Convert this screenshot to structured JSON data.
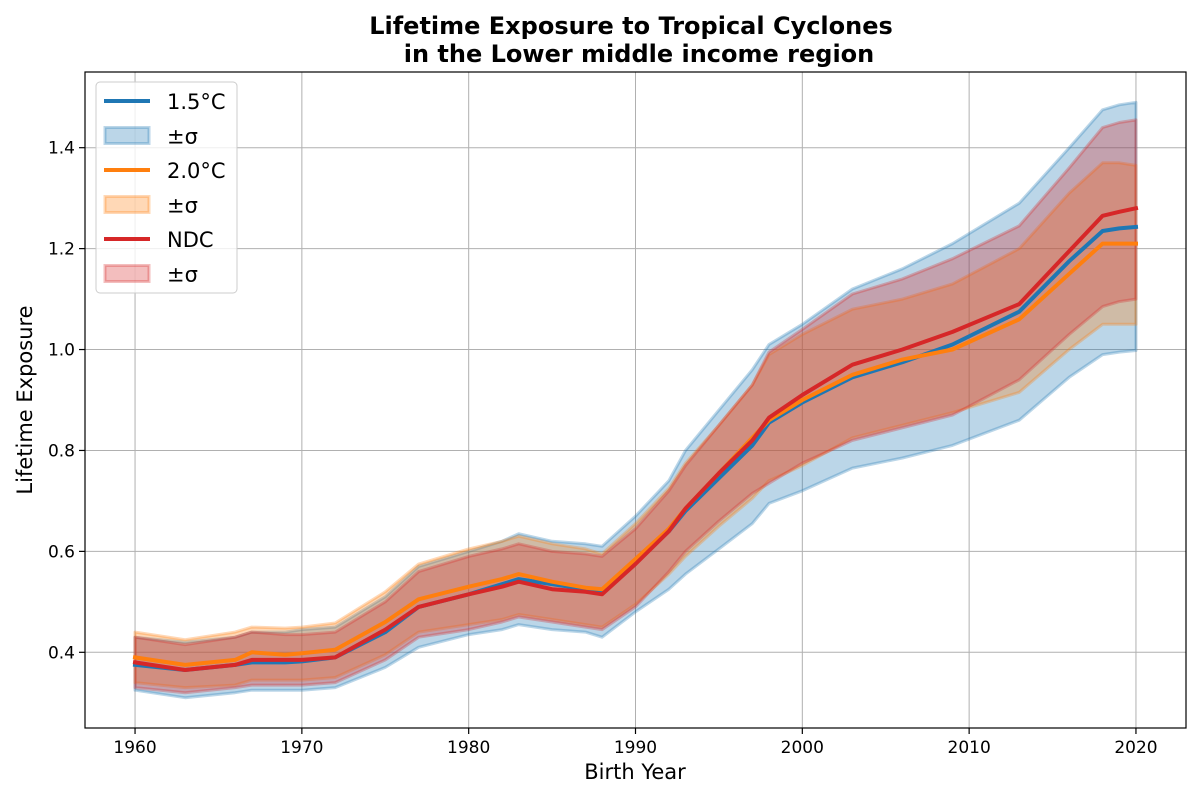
{
  "chart_data": {
    "type": "line",
    "title_line1": "Lifetime Exposure to Tropical Cyclones",
    "title_line2": "in the Lower middle income region",
    "xlabel": "Birth Year",
    "ylabel": "Lifetime Exposure",
    "xlim": [
      1957,
      2023
    ],
    "ylim": [
      0.25,
      1.55
    ],
    "xticks": [
      1960,
      1970,
      1980,
      1990,
      2000,
      2010,
      2020
    ],
    "yticks": [
      0.4,
      0.6,
      0.8,
      1.0,
      1.2,
      1.4
    ],
    "ytick_labels": [
      "0.4",
      "0.6",
      "0.8",
      "1.0",
      "1.2",
      "1.4"
    ],
    "grid": true,
    "legend_position": "upper-left",
    "x": [
      1960,
      1963,
      1966,
      1967,
      1969,
      1970,
      1972,
      1975,
      1977,
      1980,
      1982,
      1983,
      1985,
      1987,
      1988,
      1990,
      1992,
      1993,
      1995,
      1997,
      1998,
      2000,
      2003,
      2006,
      2009,
      2013,
      2016,
      2018,
      2019,
      2020
    ],
    "series": [
      {
        "name": "1.5°C",
        "color": "#1f77b4",
        "band_label": "±σ",
        "values": [
          0.375,
          0.365,
          0.375,
          0.38,
          0.38,
          0.382,
          0.39,
          0.44,
          0.49,
          0.515,
          0.535,
          0.545,
          0.535,
          0.525,
          0.52,
          0.578,
          0.64,
          0.68,
          0.745,
          0.81,
          0.855,
          0.895,
          0.945,
          0.975,
          1.01,
          1.075,
          1.175,
          1.235,
          1.24,
          1.243
        ],
        "upper": [
          0.43,
          0.42,
          0.43,
          0.44,
          0.44,
          0.445,
          0.45,
          0.51,
          0.57,
          0.6,
          0.62,
          0.635,
          0.62,
          0.615,
          0.61,
          0.67,
          0.74,
          0.8,
          0.88,
          0.96,
          1.01,
          1.05,
          1.12,
          1.16,
          1.21,
          1.29,
          1.4,
          1.475,
          1.485,
          1.49
        ],
        "lower": [
          0.325,
          0.31,
          0.32,
          0.325,
          0.325,
          0.325,
          0.33,
          0.37,
          0.41,
          0.435,
          0.445,
          0.455,
          0.445,
          0.44,
          0.43,
          0.48,
          0.525,
          0.555,
          0.605,
          0.655,
          0.695,
          0.72,
          0.765,
          0.785,
          0.81,
          0.86,
          0.945,
          0.99,
          0.995,
          0.998
        ]
      },
      {
        "name": "2.0°C",
        "color": "#ff7f0e",
        "band_label": "±σ",
        "values": [
          0.39,
          0.375,
          0.385,
          0.4,
          0.395,
          0.398,
          0.405,
          0.46,
          0.505,
          0.53,
          0.545,
          0.555,
          0.54,
          0.528,
          0.525,
          0.585,
          0.645,
          0.685,
          0.755,
          0.825,
          0.86,
          0.9,
          0.95,
          0.98,
          1.0,
          1.06,
          1.15,
          1.21,
          1.21,
          1.21
        ],
        "upper": [
          0.44,
          0.425,
          0.44,
          0.45,
          0.448,
          0.45,
          0.458,
          0.52,
          0.575,
          0.605,
          0.62,
          0.63,
          0.615,
          0.605,
          0.595,
          0.655,
          0.725,
          0.775,
          0.85,
          0.93,
          0.99,
          1.03,
          1.08,
          1.1,
          1.13,
          1.2,
          1.31,
          1.37,
          1.37,
          1.365
        ],
        "lower": [
          0.34,
          0.33,
          0.335,
          0.345,
          0.345,
          0.345,
          0.35,
          0.395,
          0.44,
          0.455,
          0.465,
          0.475,
          0.465,
          0.455,
          0.45,
          0.495,
          0.555,
          0.59,
          0.65,
          0.705,
          0.74,
          0.77,
          0.825,
          0.85,
          0.875,
          0.915,
          1.0,
          1.05,
          1.05,
          1.05
        ]
      },
      {
        "name": "NDC",
        "color": "#d62728",
        "band_label": "±σ",
        "values": [
          0.38,
          0.365,
          0.375,
          0.385,
          0.385,
          0.385,
          0.39,
          0.445,
          0.49,
          0.515,
          0.53,
          0.54,
          0.525,
          0.52,
          0.515,
          0.575,
          0.64,
          0.685,
          0.755,
          0.82,
          0.865,
          0.91,
          0.97,
          1.0,
          1.035,
          1.09,
          1.195,
          1.265,
          1.273,
          1.28
        ],
        "upper": [
          0.43,
          0.415,
          0.43,
          0.44,
          0.435,
          0.435,
          0.44,
          0.5,
          0.56,
          0.59,
          0.605,
          0.615,
          0.6,
          0.595,
          0.59,
          0.645,
          0.72,
          0.77,
          0.85,
          0.93,
          0.995,
          1.04,
          1.11,
          1.14,
          1.18,
          1.245,
          1.36,
          1.44,
          1.45,
          1.455
        ],
        "lower": [
          0.33,
          0.32,
          0.33,
          0.335,
          0.335,
          0.335,
          0.34,
          0.385,
          0.43,
          0.445,
          0.46,
          0.47,
          0.46,
          0.45,
          0.445,
          0.49,
          0.56,
          0.6,
          0.66,
          0.715,
          0.735,
          0.775,
          0.82,
          0.845,
          0.87,
          0.94,
          1.03,
          1.085,
          1.095,
          1.1
        ]
      }
    ]
  }
}
